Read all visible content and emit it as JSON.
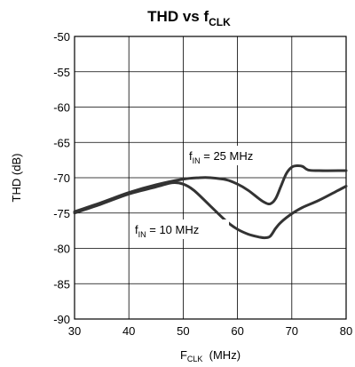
{
  "chart_data": {
    "type": "line",
    "title": {
      "main": "THD vs f",
      "sub": "CLK"
    },
    "xlabel": {
      "main": "F",
      "sub": "CLK",
      "rest": "  (MHz)"
    },
    "ylabel": "THD (dB)",
    "xlim": [
      30,
      80
    ],
    "ylim": [
      -90,
      -50
    ],
    "xticks": [
      30,
      40,
      50,
      60,
      70,
      80
    ],
    "yticks": [
      -90,
      -85,
      -80,
      -75,
      -70,
      -65,
      -60,
      -55,
      -50
    ],
    "xtick_labels": [
      "30",
      "40",
      "50",
      "60",
      "70",
      "80"
    ],
    "ytick_labels": [
      "-90",
      "-85",
      "-80",
      "-75",
      "-70",
      "-65",
      "-60",
      "-55",
      "-50"
    ],
    "grid": true,
    "series": [
      {
        "name": "fIN = 25 MHz",
        "label": {
          "pre": "f",
          "sub": "IN",
          "post": " = 25 MHz"
        },
        "color": "#333333",
        "x": [
          30,
          35,
          40,
          45,
          50,
          53,
          55,
          58,
          60,
          62,
          64,
          65,
          66,
          67,
          68,
          69,
          70,
          71,
          72,
          73,
          75,
          80
        ],
        "y": [
          -74.8,
          -73.5,
          -72.1,
          -71.0,
          -70.2,
          -70.0,
          -70.0,
          -70.3,
          -70.9,
          -71.8,
          -73.0,
          -73.5,
          -73.7,
          -73.0,
          -71.2,
          -69.4,
          -68.5,
          -68.3,
          -68.4,
          -68.9,
          -69.0,
          -69.0
        ]
      },
      {
        "name": "fIN = 10 MHz",
        "label": {
          "pre": "f",
          "sub": "IN",
          "post": " = 10 MHz"
        },
        "color": "#333333",
        "x": [
          30,
          35,
          40,
          45,
          48,
          50,
          52,
          55,
          58,
          60,
          62,
          64,
          65,
          66,
          67,
          68,
          70,
          72,
          75,
          78,
          80
        ],
        "y": [
          -75.0,
          -73.7,
          -72.3,
          -71.3,
          -70.7,
          -70.9,
          -71.8,
          -74.0,
          -76.2,
          -77.3,
          -78.0,
          -78.4,
          -78.5,
          -78.3,
          -77.2,
          -76.3,
          -75.1,
          -74.2,
          -73.2,
          -72.0,
          -71.2
        ]
      }
    ]
  }
}
